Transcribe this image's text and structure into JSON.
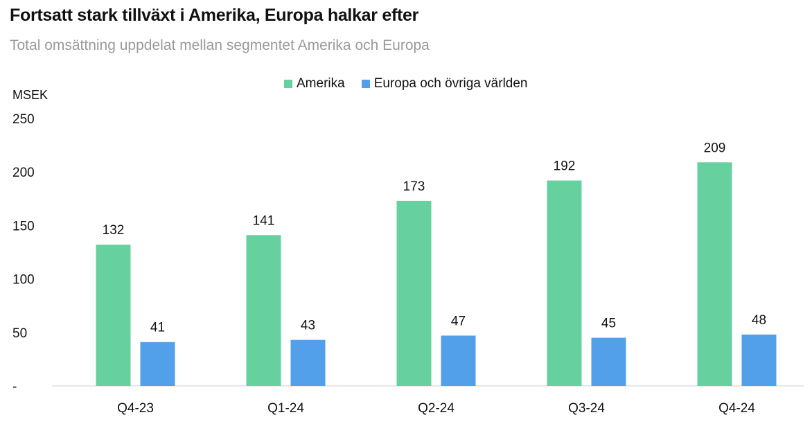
{
  "chart_data": {
    "type": "bar",
    "title": "Fortsatt stark tillväxt i Amerika, Europa halkar efter",
    "subtitle": "Total omsättning uppdelat mellan segmentet Amerika och Europa",
    "ylabel": "MSEK",
    "xlabel": "",
    "categories": [
      "Q4-23",
      "Q1-24",
      "Q2-24",
      "Q3-24",
      "Q4-24"
    ],
    "series": [
      {
        "name": "Amerika",
        "color": "#66d19e",
        "values": [
          132,
          141,
          173,
          192,
          209
        ]
      },
      {
        "name": "Europa och övriga världen",
        "color": "#52a0ea",
        "values": [
          41,
          43,
          47,
          45,
          48
        ]
      }
    ],
    "ylim": [
      0,
      250
    ],
    "yticks": [
      {
        "value": 250,
        "label": "250"
      },
      {
        "value": 200,
        "label": "200"
      },
      {
        "value": 150,
        "label": "150"
      },
      {
        "value": 100,
        "label": "100"
      },
      {
        "value": 50,
        "label": "50"
      },
      {
        "value": 0,
        "label": "-"
      }
    ],
    "grid": false,
    "legend_position": "top-center",
    "data_labels": true
  }
}
